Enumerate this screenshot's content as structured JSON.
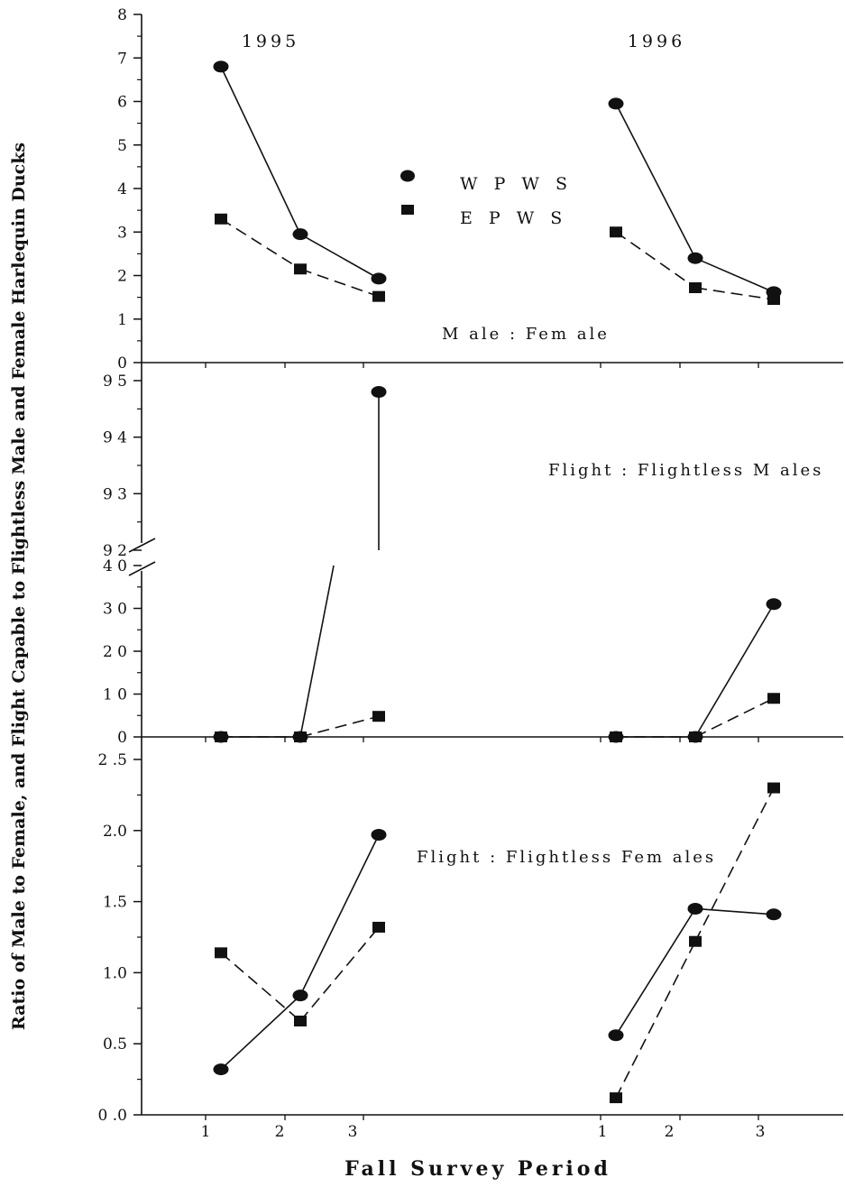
{
  "chart_data": {
    "type": "line",
    "xlabel": "Fall Survey Period",
    "ylabel": "Ratio of Male to Female, and Flight Capable to Flightless Male and Female Harlequin Ducks",
    "years": [
      "1995",
      "1996"
    ],
    "x_ticks": [
      "1",
      "2",
      "3"
    ],
    "legend": [
      {
        "name": "WPWS",
        "text": "W P W S",
        "marker": "circle",
        "line": "solid"
      },
      {
        "name": "EPWS",
        "text": "E P W S",
        "marker": "square",
        "line": "dashed"
      }
    ],
    "panels": [
      {
        "label": "M ale : Fem ale",
        "ylim": [
          0,
          8
        ],
        "y_ticks": [
          "0",
          "1",
          "2",
          "3",
          "4",
          "5",
          "6",
          "7",
          "8"
        ],
        "series": [
          {
            "name": "WPWS",
            "1995": [
              6.8,
              2.95,
              1.93
            ],
            "1996": [
              5.95,
              2.4,
              1.62
            ]
          },
          {
            "name": "EPWS",
            "1995": [
              3.3,
              2.15,
              1.52
            ],
            "1996": [
              3.0,
              1.72,
              1.45
            ]
          }
        ]
      },
      {
        "label": "Flight : Flightless M ales",
        "ylim": [
          0,
          40
        ],
        "broken_axis_upper": [
          92,
          95
        ],
        "y_ticks_upper": [
          "9 2",
          "9 3",
          "9 4",
          "9 5"
        ],
        "y_ticks": [
          "0",
          "1 0",
          "2 0",
          "3 0",
          "4 0"
        ],
        "series": [
          {
            "name": "WPWS",
            "1995": [
              0,
              0,
              94.8
            ],
            "1996": [
              0,
              0,
              31
            ]
          },
          {
            "name": "EPWS",
            "1995": [
              0,
              0,
              4.8
            ],
            "1996": [
              0,
              0,
              9
            ]
          }
        ]
      },
      {
        "label": "Flight : Flightless Fem ales",
        "ylim": [
          0,
          2.5
        ],
        "y_ticks": [
          "0 .0",
          "0.5",
          "1.0",
          "1.5",
          "2.0",
          "2 .5"
        ],
        "series": [
          {
            "name": "WPWS",
            "1995": [
              0.32,
              0.84,
              1.97
            ],
            "1996": [
              0.56,
              1.45,
              1.41
            ]
          },
          {
            "name": "EPWS",
            "1995": [
              1.14,
              0.66,
              1.32
            ],
            "1996": [
              0.12,
              1.22,
              2.3
            ]
          }
        ]
      }
    ]
  }
}
